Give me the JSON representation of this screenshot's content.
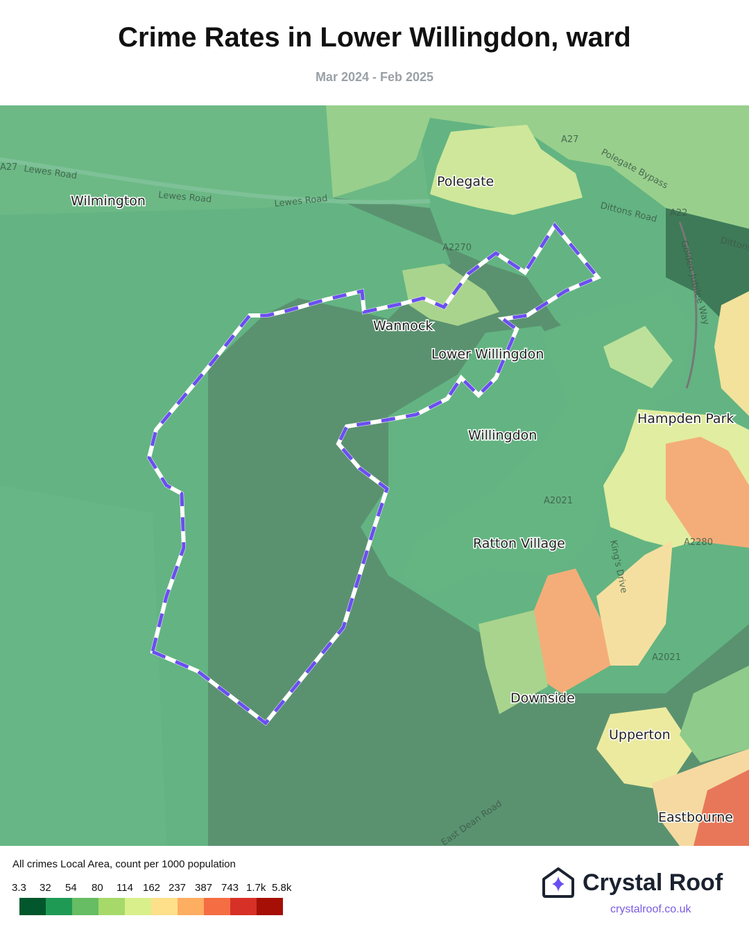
{
  "header": {
    "title": "Crime Rates in Lower Willingdon, ward",
    "subtitle": "Mar 2024 - Feb 2025"
  },
  "map": {
    "places": [
      "Polegate",
      "Wilmington",
      "Wannock",
      "Lower Willingdon",
      "Willingdon",
      "Hampden Park",
      "Ratton Village",
      "Downside",
      "Upperton",
      "Eastbourne"
    ],
    "roads": [
      "Lewes Road",
      "Lewes Road",
      "Lewes Road",
      "A27",
      "A27",
      "Polegate Bypass",
      "Dittons Road",
      "A22",
      "Dittons",
      "Golden Jubilee Way",
      "A2270",
      "A2021",
      "A2280",
      "King's Drive",
      "A2021",
      "East Dean Road"
    ],
    "boundary_color": "#6a4ff0",
    "highlighted_ward": "Lower Willingdon"
  },
  "legend": {
    "title": "All crimes Local Area, count per 1000 population",
    "ticks": [
      "3.3",
      "32",
      "54",
      "80",
      "114",
      "162",
      "237",
      "387",
      "743",
      "1.7k",
      "5.8k"
    ],
    "colors": [
      "#03572c",
      "#1f9a55",
      "#66bd63",
      "#a6d96a",
      "#d9ef8b",
      "#fee08b",
      "#fdae61",
      "#f46d43",
      "#d73027",
      "#a50f05"
    ]
  },
  "brand": {
    "name": "Crystal Roof",
    "url": "crystalroof.co.uk",
    "icon": "house-star-icon"
  }
}
